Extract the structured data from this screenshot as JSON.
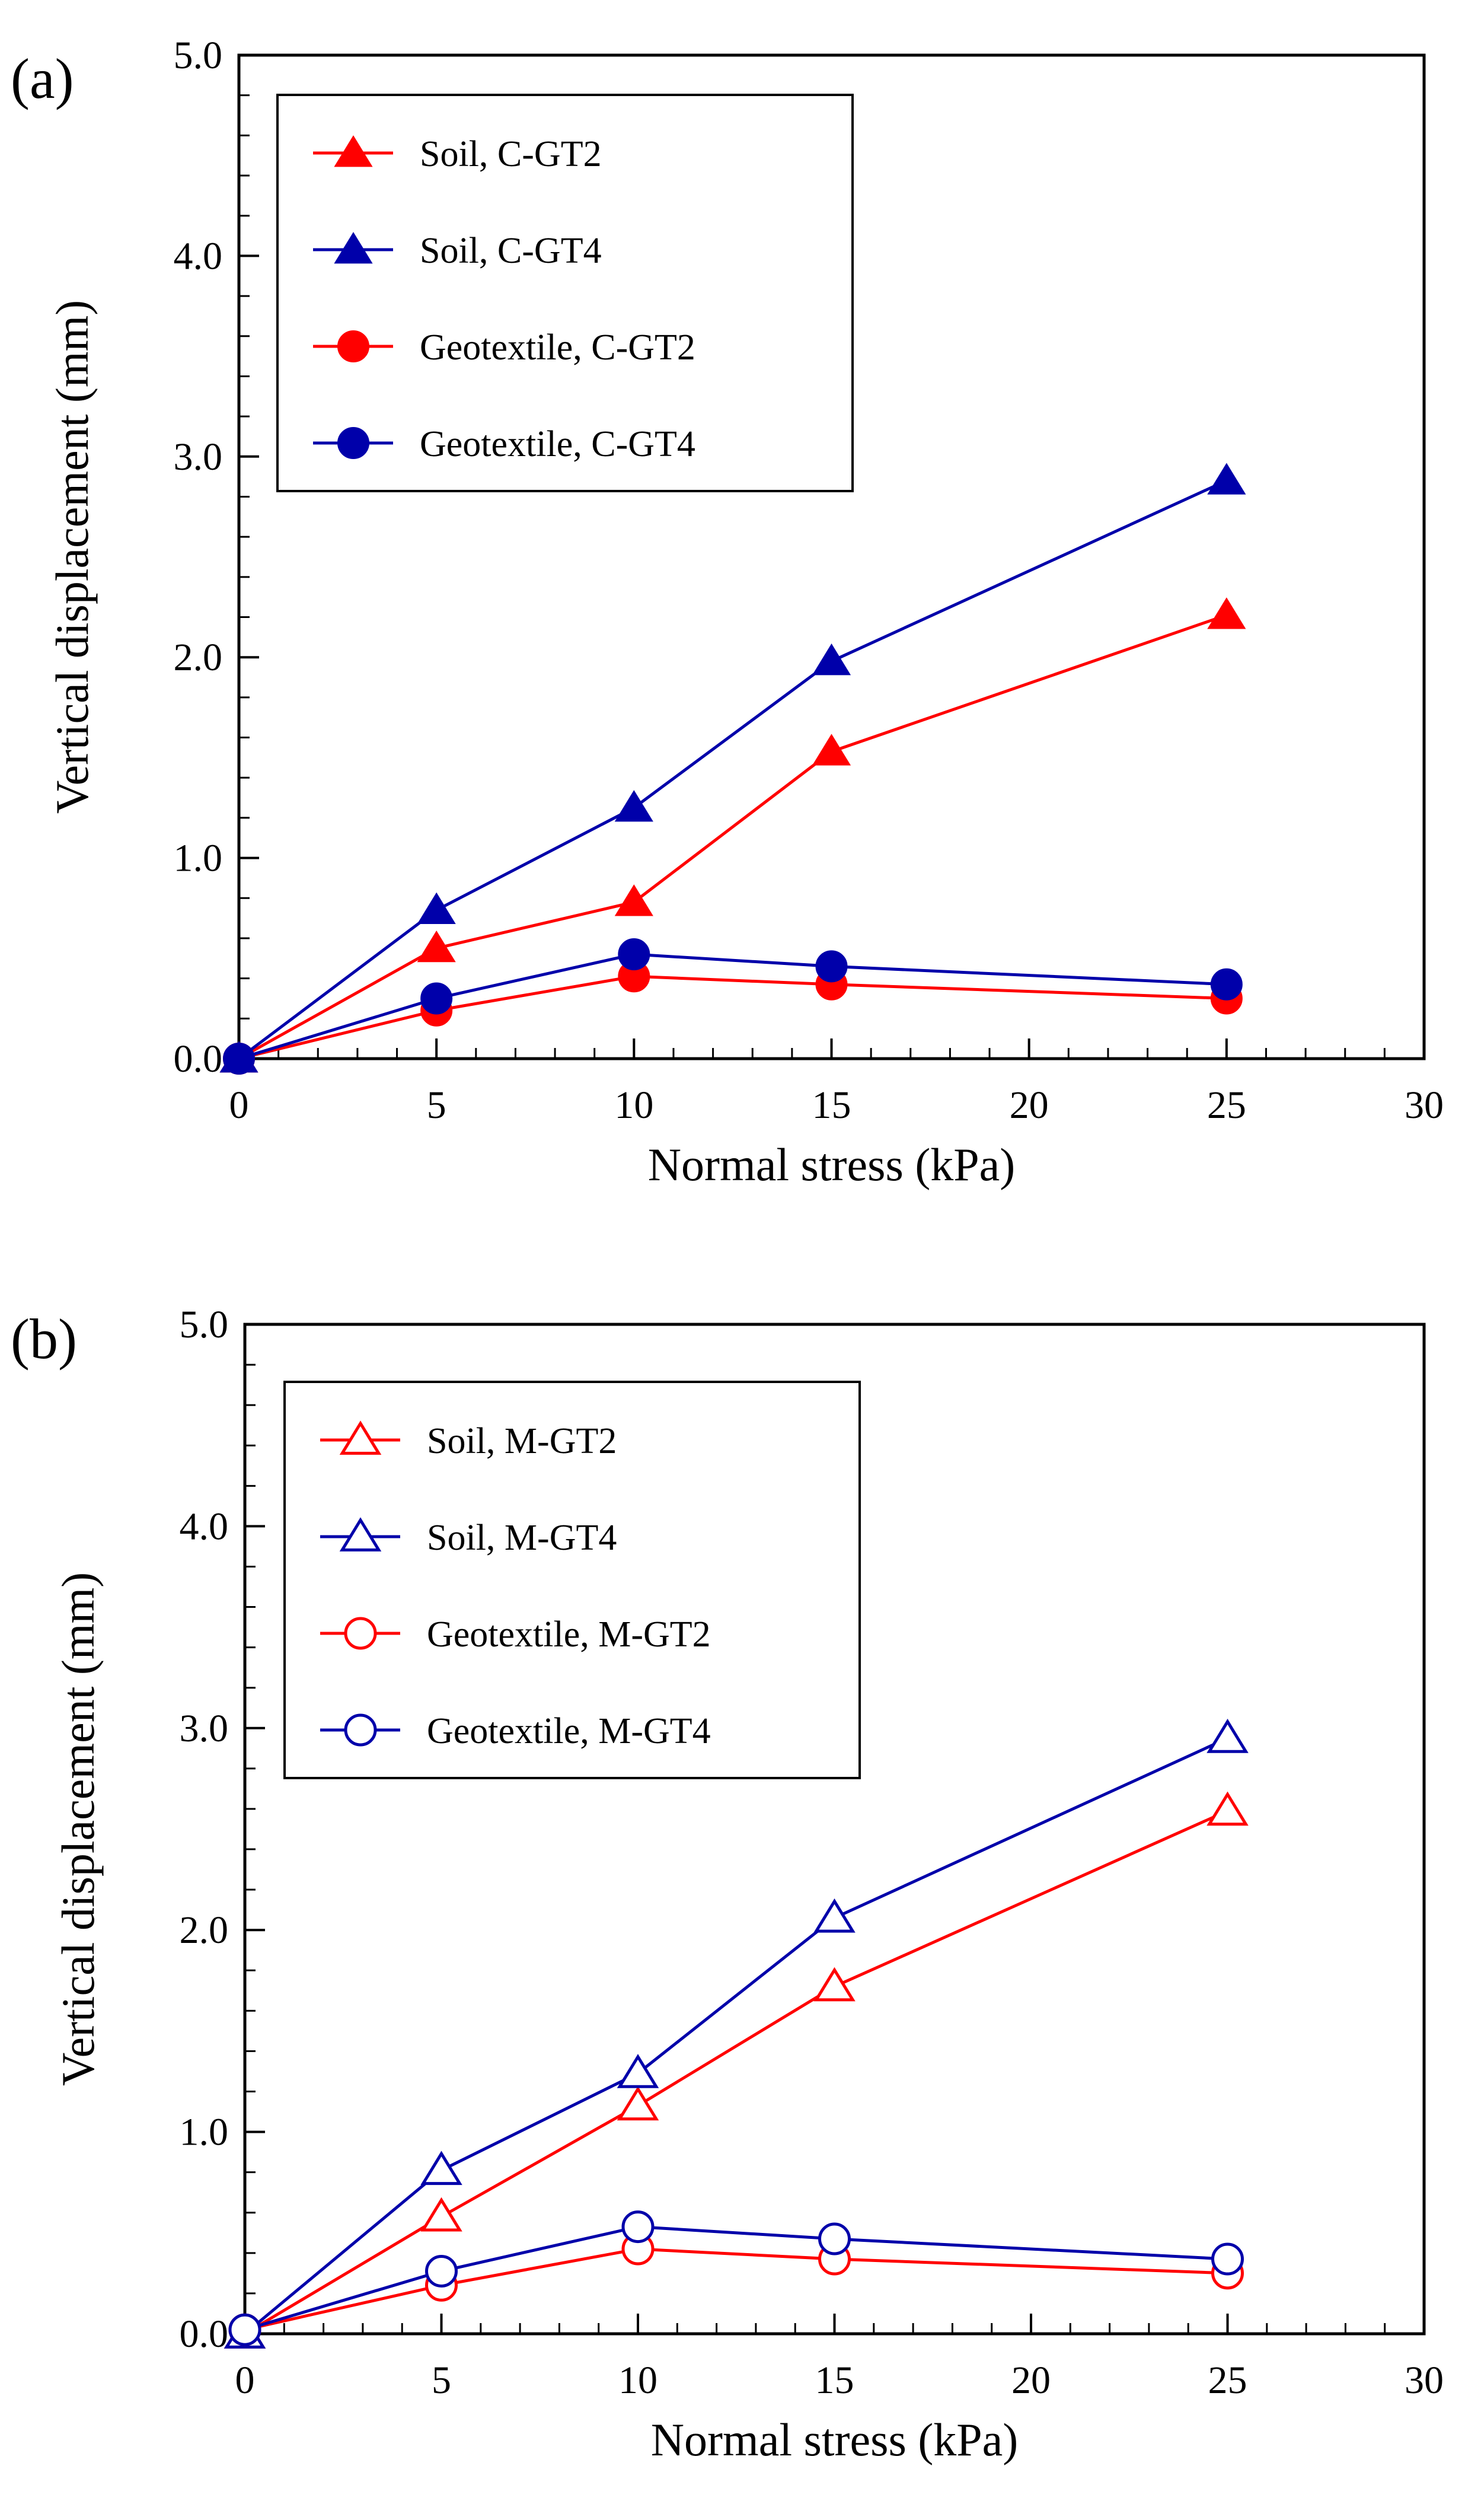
{
  "chart_data": [
    {
      "type": "line",
      "panel_label": "(a)",
      "xlabel": "Normal stress (kPa)",
      "ylabel": "Vertical displacement (mm)",
      "xlim": [
        0,
        30
      ],
      "ylim": [
        0,
        5
      ],
      "xticks": [
        "0",
        "5",
        "10",
        "15",
        "20",
        "25",
        "30"
      ],
      "yticks": [
        "0.0",
        "1.0",
        "2.0",
        "3.0",
        "4.0",
        "5.0"
      ],
      "grid": false,
      "legend_position": "top-left",
      "series": [
        {
          "name": "Soil, C-GT2",
          "color": "#ff0000",
          "marker": "triangle",
          "filled": true,
          "x": [
            0,
            5,
            10,
            15,
            25
          ],
          "y": [
            0.0,
            0.55,
            0.78,
            1.53,
            2.21
          ]
        },
        {
          "name": "Soil, C-GT4",
          "color": "#0000aa",
          "marker": "triangle",
          "filled": true,
          "x": [
            0,
            5,
            10,
            15,
            25
          ],
          "y": [
            0.0,
            0.74,
            1.25,
            1.98,
            2.88
          ]
        },
        {
          "name": "Geotextile, C-GT2",
          "color": "#ff0000",
          "marker": "circle",
          "filled": true,
          "x": [
            0,
            5,
            10,
            15,
            25
          ],
          "y": [
            0.0,
            0.24,
            0.41,
            0.37,
            0.3
          ]
        },
        {
          "name": "Geotextile, C-GT4",
          "color": "#0000aa",
          "marker": "circle",
          "filled": true,
          "x": [
            0,
            5,
            10,
            15,
            25
          ],
          "y": [
            0.0,
            0.3,
            0.52,
            0.46,
            0.37
          ]
        }
      ]
    },
    {
      "type": "line",
      "panel_label": "(b)",
      "xlabel": "Normal stress (kPa)",
      "ylabel": "Vertical displacement (mm)",
      "xlim": [
        0,
        30
      ],
      "ylim": [
        0,
        5
      ],
      "xticks": [
        "0",
        "5",
        "10",
        "15",
        "20",
        "25",
        "30"
      ],
      "yticks": [
        "0.0",
        "1.0",
        "2.0",
        "3.0",
        "4.0",
        "5.0"
      ],
      "grid": false,
      "legend_position": "top-left",
      "series": [
        {
          "name": "Soil, M-GT2",
          "color": "#ff0000",
          "marker": "triangle",
          "filled": false,
          "x": [
            0,
            5,
            10,
            15,
            25
          ],
          "y": [
            0.0,
            0.58,
            1.13,
            1.72,
            2.59
          ]
        },
        {
          "name": "Soil, M-GT4",
          "color": "#0000aa",
          "marker": "triangle",
          "filled": false,
          "x": [
            0,
            5,
            10,
            15,
            25
          ],
          "y": [
            0.0,
            0.81,
            1.29,
            2.06,
            2.95
          ]
        },
        {
          "name": "Geotextile, M-GT2",
          "color": "#ff0000",
          "marker": "circle",
          "filled": false,
          "x": [
            0,
            5,
            10,
            15,
            25
          ],
          "y": [
            0.02,
            0.24,
            0.42,
            0.37,
            0.3
          ]
        },
        {
          "name": "Geotextile, M-GT4",
          "color": "#0000aa",
          "marker": "circle",
          "filled": false,
          "x": [
            0,
            5,
            10,
            15,
            25
          ],
          "y": [
            0.02,
            0.31,
            0.53,
            0.47,
            0.37
          ]
        }
      ]
    }
  ]
}
